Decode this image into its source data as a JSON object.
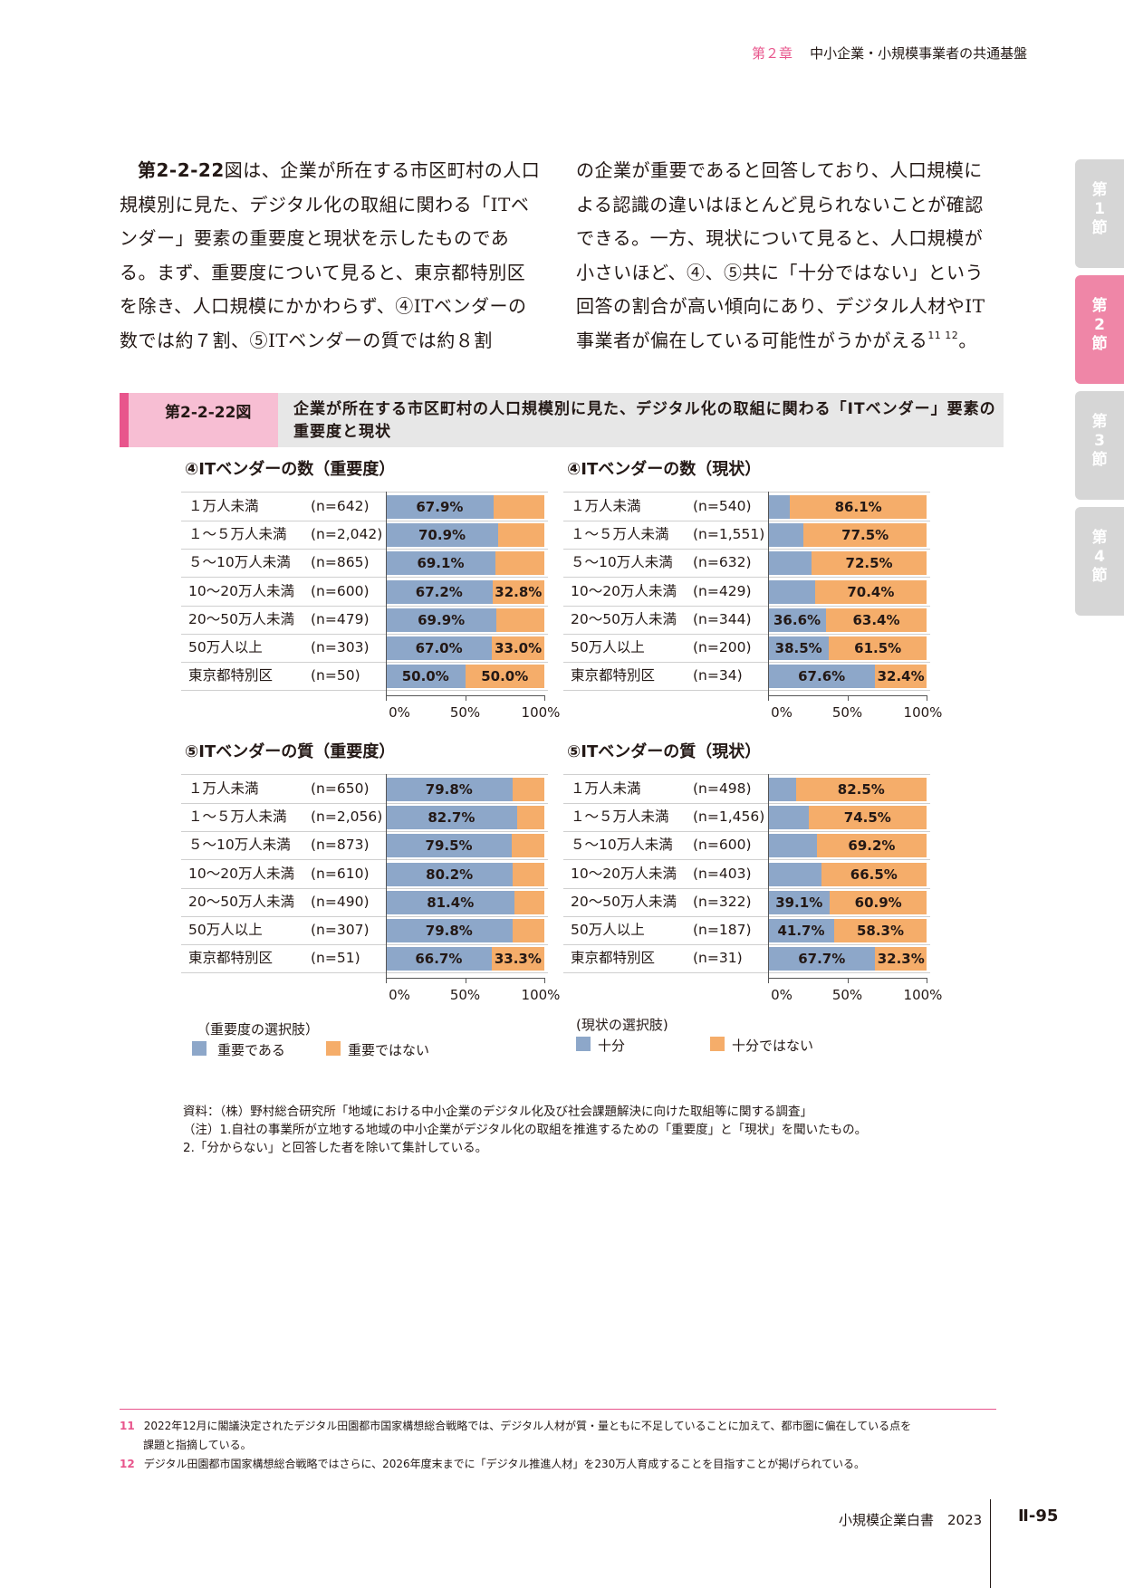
{
  "header": {
    "chapter": "第２章",
    "title": "中小企業・小規模事業者の共通基盤"
  },
  "body": {
    "left_ref": "第2-2-22",
    "left_text": "図は、企業が所在する市区町村の人口規模別に見た、デジタル化の取組に関わる「ITベンダー」要素の重要度と現状を示したものである。まず、重要度について見ると、東京都特別区を除き、人口規模にかかわらず、④ITベンダーの数では約７割、⑤ITベンダーの質では約８割",
    "right_text": "の企業が重要であると回答しており、人口規模による認識の違いはほとんど見られないことが確認できる。一方、現状について見ると、人口規模が小さいほど、④、⑤共に「十分ではない」という回答の割合が高い傾向にあり、デジタル人材やIT事業者が偏在している可能性がうかがえる",
    "sup": "11 12",
    "right_end": "。"
  },
  "tabs": [
    {
      "label": "第\n1\n節",
      "active": false
    },
    {
      "label": "第\n2\n節",
      "active": true
    },
    {
      "label": "第\n3\n節",
      "active": false
    },
    {
      "label": "第\n4\n節",
      "active": false
    }
  ],
  "figure": {
    "number": "第2-2-22図",
    "title": "企業が所在する市区町村の人口規模別に見た、デジタル化の取組に関わる「ITベンダー」要素の重要度と現状"
  },
  "colors": {
    "blue": "#8da7c9",
    "orange": "#f5ad6a",
    "pink": "#e8558c"
  },
  "chart_data": [
    {
      "type": "bar",
      "stacked": true,
      "orientation": "horizontal",
      "title": "④ITベンダーの数（重要度）",
      "categories": [
        "１万人未満",
        "１～５万人未満",
        "５～10万人未満",
        "10～20万人未満",
        "20～50万人未満",
        "50万人以上",
        "東京都特別区"
      ],
      "n": [
        "(n=642)",
        "(n=2,042)",
        "(n=865)",
        "(n=600)",
        "(n=479)",
        "(n=303)",
        "(n=50)"
      ],
      "series": [
        {
          "name": "重要である",
          "values": [
            67.9,
            70.9,
            69.1,
            67.2,
            69.9,
            67.0,
            50.0
          ],
          "labels": [
            "67.9%",
            "70.9%",
            "69.1%",
            "67.2%",
            "69.9%",
            "67.0%",
            "50.0%"
          ]
        },
        {
          "name": "重要ではない",
          "values": [
            32.1,
            29.1,
            30.9,
            32.8,
            30.1,
            33.0,
            50.0
          ],
          "labels": [
            "",
            "",
            "",
            "32.8%",
            "",
            "33.0%",
            "50.0%"
          ]
        }
      ],
      "xticks": [
        "0%",
        "50%",
        "100%"
      ],
      "xlim": [
        0,
        100
      ]
    },
    {
      "type": "bar",
      "stacked": true,
      "orientation": "horizontal",
      "title": "④ITベンダーの数（現状）",
      "categories": [
        "１万人未満",
        "１～５万人未満",
        "５～10万人未満",
        "10～20万人未満",
        "20～50万人未満",
        "50万人以上",
        "東京都特別区"
      ],
      "n": [
        "(n=540)",
        "(n=1,551)",
        "(n=632)",
        "(n=429)",
        "(n=344)",
        "(n=200)",
        "(n=34)"
      ],
      "series": [
        {
          "name": "十分",
          "values": [
            13.9,
            22.5,
            27.5,
            29.6,
            36.6,
            38.5,
            67.6
          ],
          "labels": [
            "",
            "",
            "",
            "",
            "36.6%",
            "38.5%",
            "67.6%"
          ]
        },
        {
          "name": "十分ではない",
          "values": [
            86.1,
            77.5,
            72.5,
            70.4,
            63.4,
            61.5,
            32.4
          ],
          "labels": [
            "86.1%",
            "77.5%",
            "72.5%",
            "70.4%",
            "63.4%",
            "61.5%",
            "32.4%"
          ]
        }
      ],
      "xticks": [
        "0%",
        "50%",
        "100%"
      ],
      "xlim": [
        0,
        100
      ]
    },
    {
      "type": "bar",
      "stacked": true,
      "orientation": "horizontal",
      "title": "⑤ITベンダーの質（重要度）",
      "categories": [
        "１万人未満",
        "１～５万人未満",
        "５～10万人未満",
        "10～20万人未満",
        "20～50万人未満",
        "50万人以上",
        "東京都特別区"
      ],
      "n": [
        "(n=650)",
        "(n=2,056)",
        "(n=873)",
        "(n=610)",
        "(n=490)",
        "(n=307)",
        "(n=51)"
      ],
      "series": [
        {
          "name": "重要である",
          "values": [
            79.8,
            82.7,
            79.5,
            80.2,
            81.4,
            79.8,
            66.7
          ],
          "labels": [
            "79.8%",
            "82.7%",
            "79.5%",
            "80.2%",
            "81.4%",
            "79.8%",
            "66.7%"
          ]
        },
        {
          "name": "重要ではない",
          "values": [
            20.2,
            17.3,
            20.5,
            19.8,
            18.6,
            20.2,
            33.3
          ],
          "labels": [
            "",
            "",
            "",
            "",
            "",
            "",
            "33.3%"
          ]
        }
      ],
      "xticks": [
        "0%",
        "50%",
        "100%"
      ],
      "xlim": [
        0,
        100
      ]
    },
    {
      "type": "bar",
      "stacked": true,
      "orientation": "horizontal",
      "title": "⑤ITベンダーの質（現状）",
      "categories": [
        "１万人未満",
        "１～５万人未満",
        "５～10万人未満",
        "10～20万人未満",
        "20～50万人未満",
        "50万人以上",
        "東京都特別区"
      ],
      "n": [
        "(n=498)",
        "(n=1,456)",
        "(n=600)",
        "(n=403)",
        "(n=322)",
        "(n=187)",
        "(n=31)"
      ],
      "series": [
        {
          "name": "十分",
          "values": [
            17.5,
            25.5,
            30.8,
            33.5,
            39.1,
            41.7,
            67.7
          ],
          "labels": [
            "",
            "",
            "",
            "",
            "39.1%",
            "41.7%",
            "67.7%"
          ]
        },
        {
          "name": "十分ではない",
          "values": [
            82.5,
            74.5,
            69.2,
            66.5,
            60.9,
            58.3,
            32.3
          ],
          "labels": [
            "82.5%",
            "74.5%",
            "69.2%",
            "66.5%",
            "60.9%",
            "58.3%",
            "32.3%"
          ]
        }
      ],
      "xticks": [
        "0%",
        "50%",
        "100%"
      ],
      "xlim": [
        0,
        100
      ]
    }
  ],
  "legends": {
    "importance": {
      "title": "（重要度の選択肢）",
      "items": [
        "重要である",
        "重要ではない"
      ]
    },
    "status": {
      "title": "(現状の選択肢)",
      "items": [
        "十分",
        "十分ではない"
      ]
    }
  },
  "notes": [
    "資料：（株）野村総合研究所「地域における中小企業のデジタル化及び社会課題解決に向けた取組等に関する調査」",
    "（注）1.自社の事業所が立地する地域の中小企業がデジタル化の取組を推進するための「重要度」と「現状」を聞いたもの。",
    "2.「分からない」と回答した者を除いて集計している。"
  ],
  "footnotes": [
    {
      "num": "11",
      "text": "2022年12月に閣議決定されたデジタル田園都市国家構想総合戦略では、デジタル人材が質・量ともに不足していることに加えて、都市圏に偏在している点を",
      "cont": "課題と指摘している。"
    },
    {
      "num": "12",
      "text": "デジタル田園都市国家構想総合戦略ではさらに、2026年度末までに「デジタル推進人材」を230万人育成することを目指すことが掲げられている。",
      "cont": ""
    }
  ],
  "footer": {
    "book": "小規模企業白書　2023",
    "page": "Ⅱ-95"
  }
}
